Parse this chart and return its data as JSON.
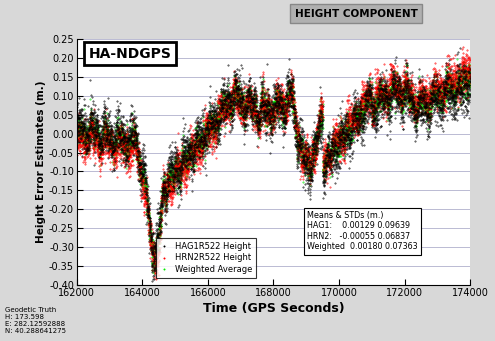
{
  "title": "HEIGHT COMPONENT",
  "subtitle": "HA-NDGPS",
  "xlabel": "Time (GPS Seconds)",
  "ylabel": "Height Error Estimates (m.)",
  "xlim": [
    162000,
    174000
  ],
  "ylim": [
    -0.4,
    0.25
  ],
  "yticks": [
    -0.4,
    -0.35,
    -0.3,
    -0.25,
    -0.2,
    -0.15,
    -0.1,
    -0.05,
    0.0,
    0.05,
    0.1,
    0.15,
    0.2,
    0.25
  ],
  "xticks": [
    162000,
    164000,
    166000,
    168000,
    170000,
    172000,
    174000
  ],
  "hag1_color": "black",
  "hrn2_color": "red",
  "wavg_color": "#00ee00",
  "legend_labels": [
    "HAG1R522 Height",
    "HRN2R522 Height",
    "Weighted Average"
  ],
  "stats_text": "Means & STDs (m.)\nHAG1:    0.00129 0.09639\nHRN2:   -0.00055 0.06837\nWeighted  0.00180 0.07363",
  "geodetic_text": "Geodetic Truth\nH: 173.598\nE: 282.12592888\nN: 40.288641275",
  "background_color": "#d8d8d8",
  "plot_bg_color": "#ffffff",
  "grid_color": "#b0b0cc",
  "seed": 42
}
